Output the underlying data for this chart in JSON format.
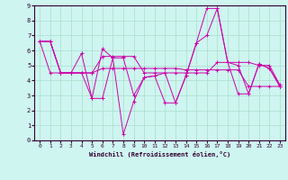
{
  "xlabel": "Windchill (Refroidissement éolien,°C)",
  "xlim": [
    -0.5,
    23.5
  ],
  "ylim": [
    0,
    9
  ],
  "xticks": [
    0,
    1,
    2,
    3,
    4,
    5,
    6,
    7,
    8,
    9,
    10,
    11,
    12,
    13,
    14,
    15,
    16,
    17,
    18,
    19,
    20,
    21,
    22,
    23
  ],
  "yticks": [
    0,
    1,
    2,
    3,
    4,
    5,
    6,
    7,
    8,
    9
  ],
  "bg_color": "#cef5f0",
  "grid_color": "#aaddcc",
  "line_color": "#cc00aa",
  "marker_color": "#cc00aa",
  "series": [
    [
      6.6,
      6.6,
      4.5,
      4.5,
      5.8,
      2.8,
      6.1,
      5.5,
      5.5,
      3.0,
      4.2,
      4.3,
      4.5,
      2.5,
      4.3,
      6.5,
      7.0,
      8.8,
      5.2,
      5.0,
      3.1,
      5.1,
      4.8,
      3.6
    ],
    [
      6.6,
      4.5,
      4.5,
      4.5,
      4.5,
      4.5,
      4.8,
      4.8,
      4.8,
      4.8,
      4.8,
      4.8,
      4.8,
      4.8,
      4.7,
      4.7,
      4.7,
      4.7,
      4.7,
      4.7,
      3.6,
      3.6,
      3.6,
      3.6
    ],
    [
      6.6,
      6.6,
      4.5,
      4.5,
      4.5,
      4.5,
      5.6,
      5.6,
      5.6,
      5.6,
      4.5,
      4.5,
      4.5,
      4.5,
      4.5,
      4.5,
      4.5,
      5.2,
      5.2,
      5.2,
      5.2,
      5.0,
      5.0,
      3.7
    ],
    [
      6.6,
      6.6,
      4.5,
      4.5,
      4.5,
      2.8,
      2.8,
      5.5,
      0.4,
      2.6,
      4.2,
      4.3,
      2.5,
      2.5,
      4.3,
      6.5,
      8.8,
      8.8,
      5.2,
      3.1,
      3.1,
      5.1,
      4.8,
      3.6
    ]
  ]
}
